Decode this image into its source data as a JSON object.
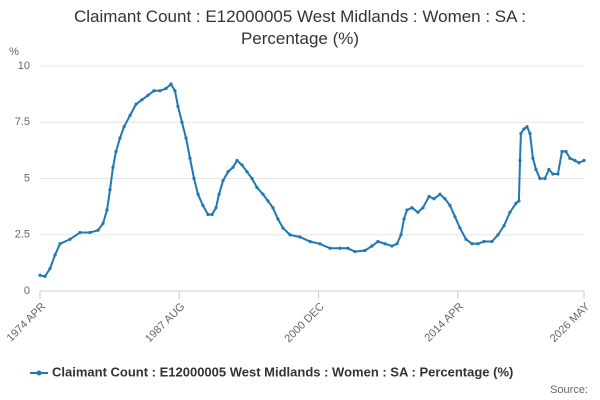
{
  "chart_data": {
    "type": "line",
    "title": "Claimant Count : E12000005 West Midlands : Women : SA : Percentage (%)",
    "y_label": "%",
    "source": "Source:",
    "x": [
      1974.25,
      1974.73,
      1975.21,
      1975.69,
      1976.16,
      1977.12,
      1978.08,
      1979.04,
      1979.8,
      1980.28,
      1980.66,
      1980.95,
      1981.24,
      1981.53,
      1981.91,
      1982.29,
      1982.87,
      1983.44,
      1984.01,
      1984.59,
      1985.16,
      1985.74,
      1986.31,
      1986.79,
      1987.17,
      1987.46,
      1987.84,
      1988.23,
      1988.61,
      1988.99,
      1989.38,
      1989.85,
      1990.33,
      1990.72,
      1991.1,
      1991.39,
      1991.77,
      1992.25,
      1992.73,
      1993.11,
      1993.59,
      1994.07,
      1994.55,
      1995.02,
      1995.6,
      1996.08,
      1996.55,
      1997.03,
      1997.51,
      1998.18,
      1999.14,
      2000.1,
      2001.05,
      2002.01,
      2002.97,
      2003.73,
      2004.4,
      2005.36,
      2006.03,
      2006.61,
      2007.28,
      2007.95,
      2008.43,
      2008.81,
      2009.1,
      2009.38,
      2009.86,
      2010.43,
      2010.91,
      2011.49,
      2011.97,
      2012.54,
      2013.02,
      2013.5,
      2013.98,
      2014.46,
      2015.03,
      2015.61,
      2016.18,
      2016.76,
      2017.52,
      2018.1,
      2018.67,
      2019.24,
      2019.82,
      2020.1,
      2020.2,
      2020.29,
      2020.58,
      2020.87,
      2021.16,
      2021.44,
      2021.73,
      2022.11,
      2022.59,
      2022.97,
      2023.36,
      2023.83,
      2024.22,
      2024.6,
      2024.98,
      2025.46,
      2025.84,
      2026.33
    ],
    "series": [
      {
        "name": "Claimant Count : E12000005 West Midlands : Women : SA : Percentage (%)",
        "color": "#1f78b4",
        "values": [
          0.7,
          0.65,
          1.0,
          1.6,
          2.1,
          2.3,
          2.6,
          2.6,
          2.7,
          3.0,
          3.6,
          4.5,
          5.5,
          6.2,
          6.8,
          7.3,
          7.8,
          8.3,
          8.5,
          8.7,
          8.9,
          8.9,
          9.0,
          9.2,
          8.9,
          8.2,
          7.5,
          6.8,
          5.9,
          5.0,
          4.3,
          3.8,
          3.4,
          3.4,
          3.7,
          4.3,
          4.9,
          5.3,
          5.5,
          5.8,
          5.6,
          5.3,
          5.0,
          4.6,
          4.3,
          4.0,
          3.7,
          3.2,
          2.8,
          2.5,
          2.4,
          2.2,
          2.1,
          1.9,
          1.9,
          1.9,
          1.75,
          1.8,
          2.0,
          2.2,
          2.1,
          2.0,
          2.1,
          2.5,
          3.2,
          3.6,
          3.7,
          3.5,
          3.7,
          4.2,
          4.1,
          4.3,
          4.1,
          3.8,
          3.3,
          2.8,
          2.3,
          2.1,
          2.1,
          2.2,
          2.2,
          2.5,
          2.9,
          3.5,
          3.9,
          4.0,
          5.8,
          7.0,
          7.2,
          7.3,
          7.0,
          5.9,
          5.4,
          5.0,
          5.0,
          5.4,
          5.2,
          5.2,
          6.2,
          6.2,
          5.9,
          5.8,
          5.7,
          5.8
        ]
      }
    ],
    "xlim": [
      1974.25,
      2026.33
    ],
    "xticks": [
      {
        "value": 1974.25,
        "label": "1974 APR"
      },
      {
        "value": 1987.58,
        "label": "1987 AUG"
      },
      {
        "value": 2000.92,
        "label": "2000 DEC"
      },
      {
        "value": 2014.25,
        "label": "2014 APR"
      },
      {
        "value": 2026.33,
        "label": "2026 MAY"
      }
    ],
    "ylim": [
      0,
      10
    ],
    "yticks": [
      0,
      2.5,
      5,
      7.5,
      10
    ],
    "grid": true,
    "legend": "bottom"
  }
}
